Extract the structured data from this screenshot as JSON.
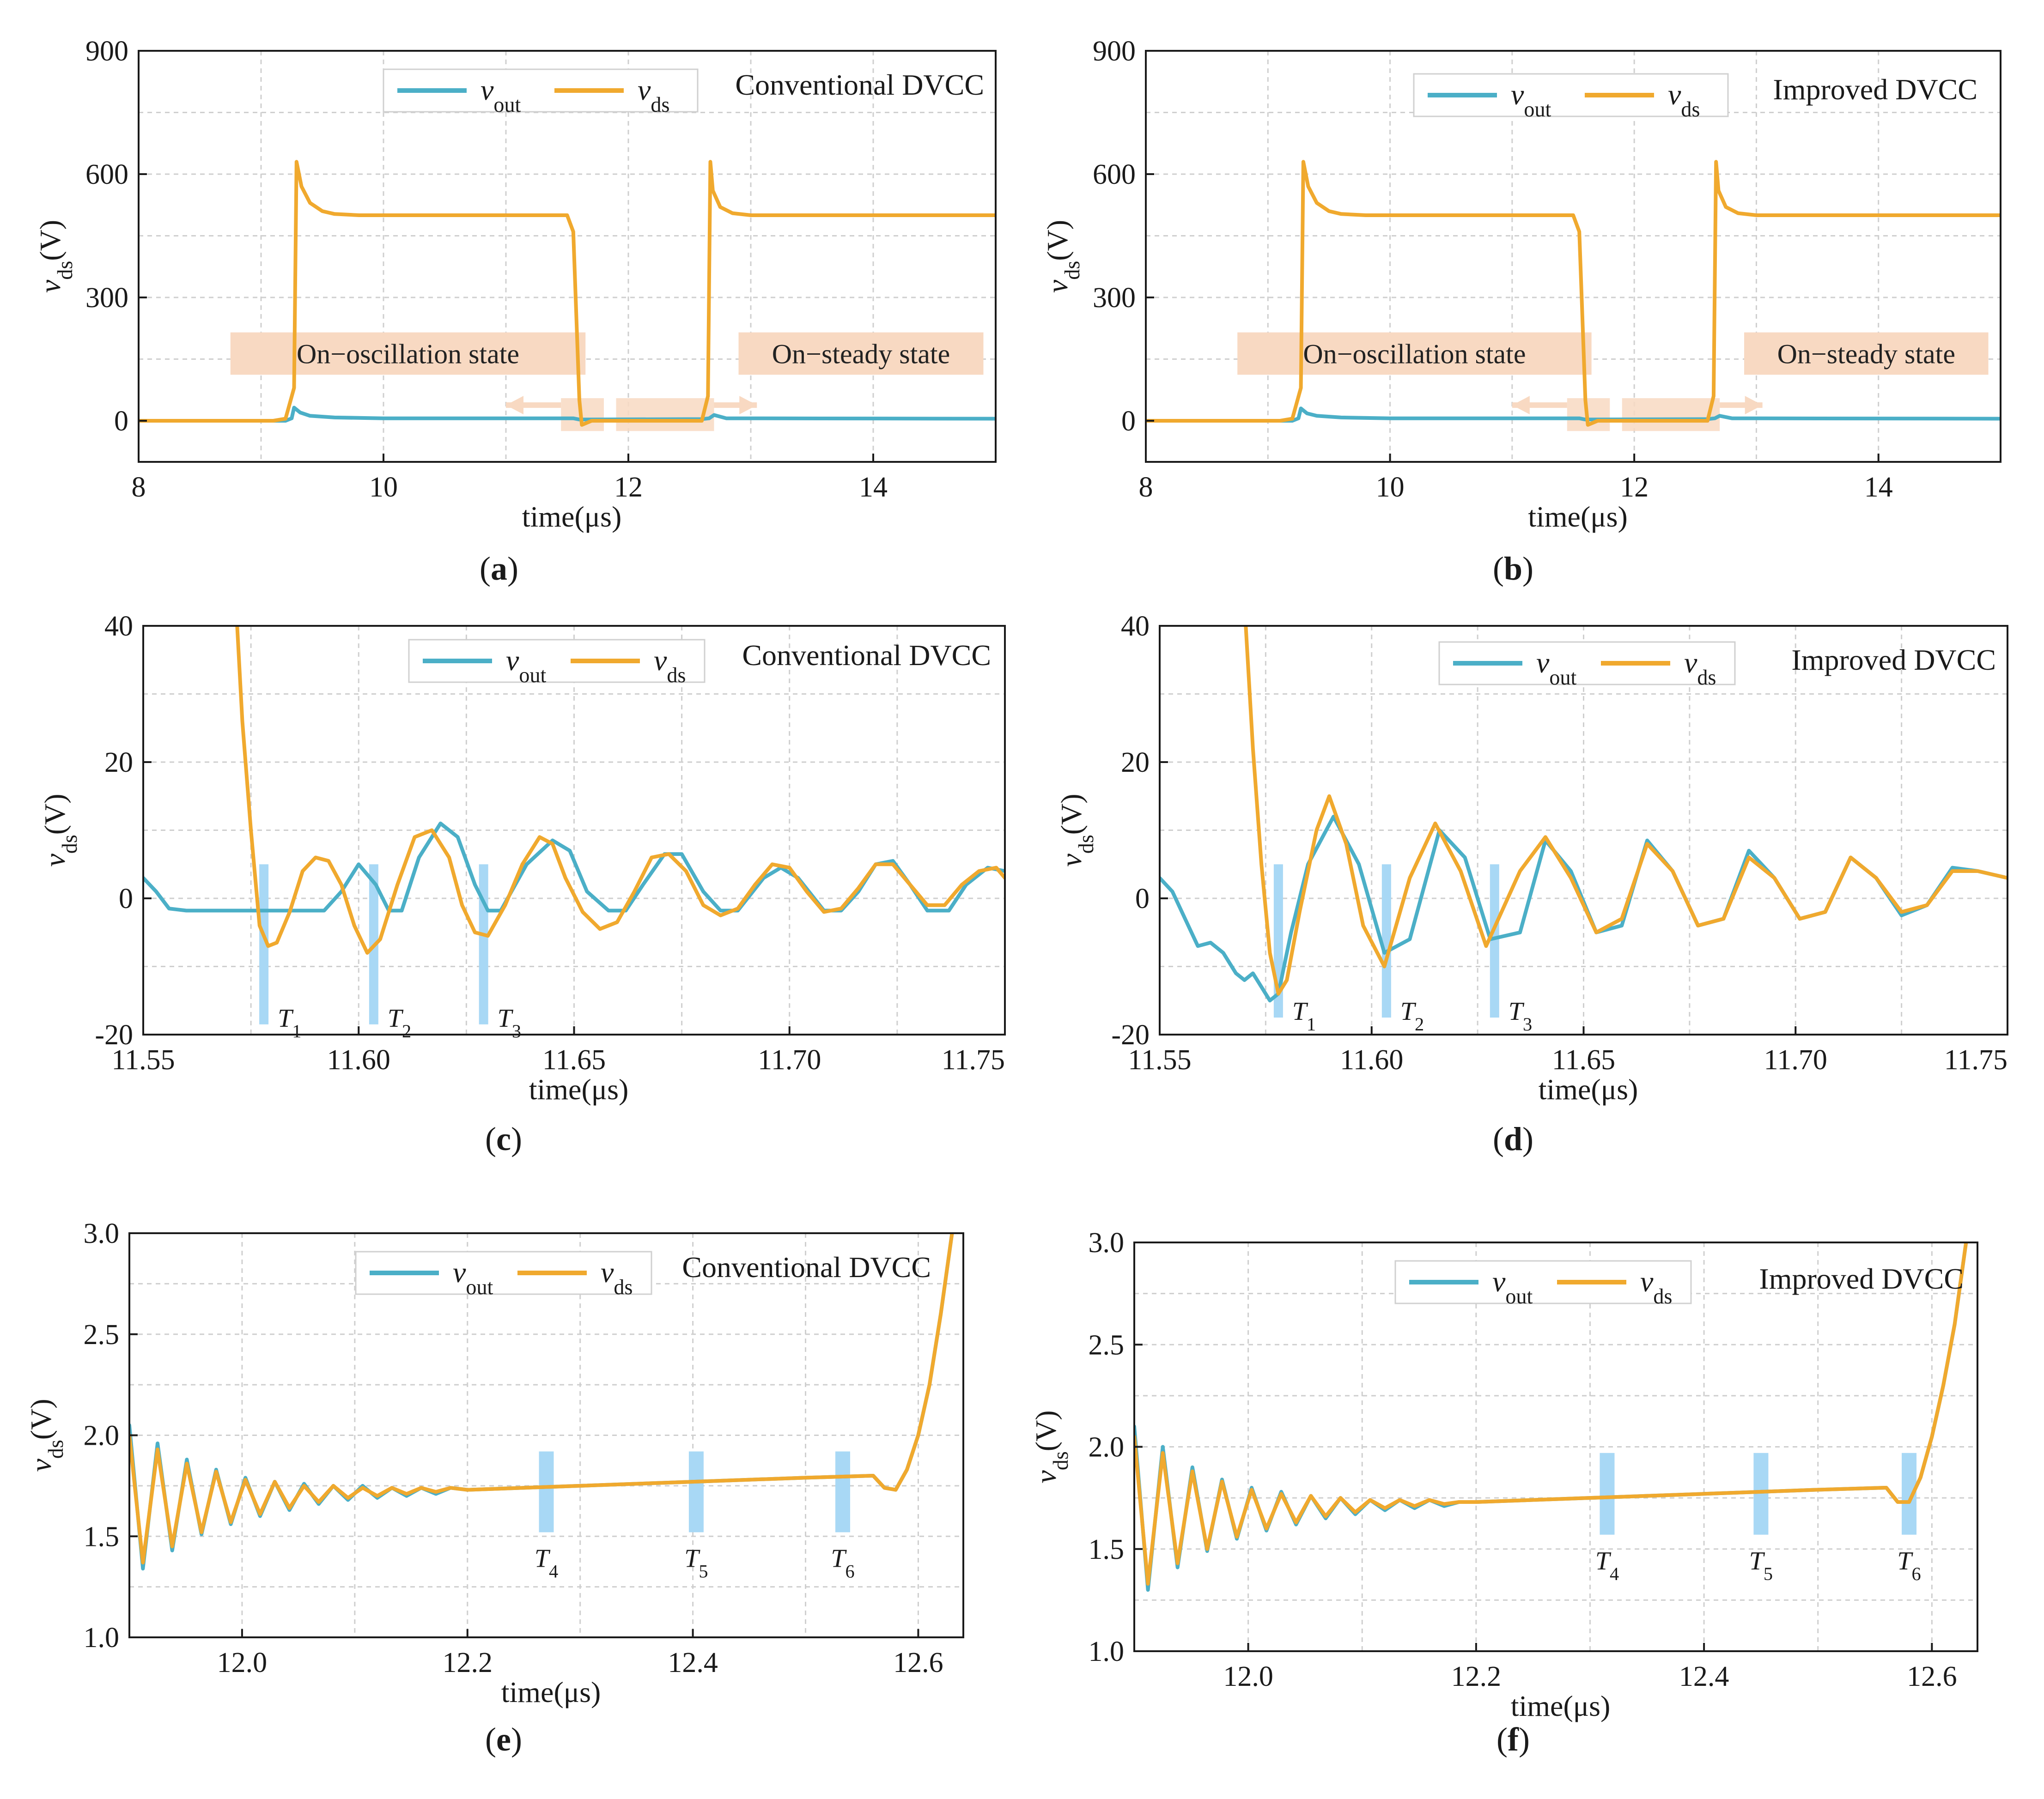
{
  "colors": {
    "vout": "#4BAFC7",
    "vds": "#F0A92E",
    "marker": "#A8D8F5",
    "annotation_box": "#F8D9C2",
    "grid": "#CFCFCF"
  },
  "chart_data": [
    {
      "id": "a",
      "type": "line",
      "caption": "(a)",
      "title": "Conventional DVCC",
      "xlabel": "time(μs)",
      "ylabel": "vds(V)",
      "xlim": [
        8,
        15
      ],
      "ylim": [
        -100,
        900
      ],
      "xticks": [
        "8",
        "10",
        "12",
        "14"
      ],
      "yticks": [
        "0",
        "300",
        "600",
        "900"
      ],
      "legend": [
        "vout",
        "vds"
      ],
      "legend_position": "top-center",
      "grid": true,
      "series": [
        {
          "name": "vout",
          "x": [
            8,
            9.2,
            9.25,
            9.27,
            9.32,
            9.4,
            9.6,
            10,
            11.5,
            11.55,
            11.6,
            12.6,
            12.66,
            12.7,
            12.8,
            15
          ],
          "y": [
            0,
            0,
            6,
            32,
            20,
            12,
            8,
            6,
            6,
            6,
            3,
            4,
            6,
            14,
            6,
            5
          ]
        },
        {
          "name": "vds",
          "x": [
            8,
            9.1,
            9.2,
            9.27,
            9.29,
            9.33,
            9.4,
            9.5,
            9.6,
            9.8,
            10,
            11.5,
            11.55,
            11.6,
            11.62,
            11.7,
            12.6,
            12.65,
            12.67,
            12.69,
            12.75,
            12.85,
            13,
            15
          ],
          "y": [
            0,
            0,
            5,
            80,
            630,
            570,
            530,
            510,
            503,
            500,
            500,
            500,
            460,
            50,
            -10,
            0,
            0,
            60,
            630,
            560,
            520,
            505,
            500,
            500
          ]
        }
      ],
      "annotations": [
        "On−oscillation state",
        "On−steady state"
      ]
    },
    {
      "id": "b",
      "type": "line",
      "caption": "(b)",
      "title": "Improved DVCC",
      "xlabel": "time(μs)",
      "ylabel": "vds(V)",
      "xlim": [
        8,
        15
      ],
      "ylim": [
        -100,
        900
      ],
      "xticks": [
        "8",
        "10",
        "12",
        "14"
      ],
      "yticks": [
        "0",
        "300",
        "600",
        "900"
      ],
      "legend": [
        "vout",
        "vds"
      ],
      "legend_position": "top-center",
      "grid": true,
      "series": [
        {
          "name": "vout",
          "x": [
            8,
            9.2,
            9.25,
            9.27,
            9.32,
            9.4,
            9.6,
            10,
            11.5,
            11.55,
            11.6,
            12.6,
            12.66,
            12.7,
            12.8,
            15
          ],
          "y": [
            0,
            0,
            6,
            30,
            18,
            12,
            8,
            6,
            6,
            6,
            3,
            4,
            6,
            12,
            6,
            5
          ]
        },
        {
          "name": "vds",
          "x": [
            8,
            9.1,
            9.2,
            9.27,
            9.29,
            9.33,
            9.4,
            9.5,
            9.6,
            9.8,
            10,
            11.5,
            11.55,
            11.6,
            11.62,
            11.7,
            12.6,
            12.65,
            12.67,
            12.69,
            12.75,
            12.85,
            13,
            15
          ],
          "y": [
            0,
            0,
            5,
            80,
            630,
            570,
            530,
            510,
            503,
            500,
            500,
            500,
            460,
            50,
            -10,
            0,
            0,
            60,
            630,
            560,
            520,
            505,
            500,
            500
          ]
        }
      ],
      "annotations": [
        "On−oscillation state",
        "On−steady state"
      ]
    },
    {
      "id": "c",
      "type": "line",
      "caption": "(c)",
      "title": "Conventional DVCC",
      "xlabel": "time(μs)",
      "ylabel": "vds(V)",
      "xlim": [
        11.55,
        11.75
      ],
      "ylim": [
        -20,
        40
      ],
      "xticks": [
        "11.55",
        "11.60",
        "11.65",
        "11.70",
        "11.75"
      ],
      "yticks": [
        "-20",
        "0",
        "20",
        "40"
      ],
      "legend": [
        "vout",
        "vds"
      ],
      "legend_position": "top-center",
      "grid": true,
      "markers": [
        "T1",
        "T2",
        "T3"
      ],
      "series": [
        {
          "name": "vout",
          "x": [
            11.55,
            11.553,
            11.556,
            11.56,
            11.57,
            11.58,
            11.592,
            11.596,
            11.6,
            11.604,
            11.607,
            11.61,
            11.614,
            11.619,
            11.623,
            11.627,
            11.63,
            11.633,
            11.639,
            11.645,
            11.649,
            11.653,
            11.658,
            11.662,
            11.666,
            11.671,
            11.675,
            11.68,
            11.684,
            11.688,
            11.694,
            11.698,
            11.702,
            11.708,
            11.712,
            11.716,
            11.72,
            11.724,
            11.728,
            11.732,
            11.737,
            11.741,
            11.746,
            11.75
          ],
          "y": [
            3,
            1,
            -1.5,
            -1.8,
            -1.8,
            -1.8,
            -1.8,
            1,
            5,
            2,
            -1.8,
            -1.8,
            6,
            11,
            9,
            2,
            -1.8,
            -1.8,
            5,
            8.5,
            7,
            1,
            -1.8,
            -1.8,
            2,
            6.5,
            6.5,
            1,
            -1.8,
            -1.8,
            3,
            4.5,
            3,
            -1.8,
            -1.8,
            1,
            5,
            5.5,
            2,
            -1.8,
            -1.8,
            2,
            4.5,
            4
          ]
        },
        {
          "name": "vds",
          "x": [
            11.5718,
            11.573,
            11.575,
            11.577,
            11.579,
            11.581,
            11.584,
            11.587,
            11.59,
            11.593,
            11.596,
            11.599,
            11.602,
            11.605,
            11.609,
            11.613,
            11.617,
            11.621,
            11.624,
            11.627,
            11.63,
            11.634,
            11.638,
            11.642,
            11.645,
            11.648,
            11.652,
            11.656,
            11.66,
            11.664,
            11.668,
            11.672,
            11.676,
            11.68,
            11.684,
            11.688,
            11.692,
            11.696,
            11.7,
            11.704,
            11.708,
            11.712,
            11.716,
            11.72,
            11.724,
            11.728,
            11.732,
            11.736,
            11.74,
            11.744,
            11.748,
            11.75
          ],
          "y": [
            40,
            26,
            10,
            -4,
            -7,
            -6.5,
            -2,
            4,
            6,
            5.5,
            2,
            -4,
            -8,
            -6,
            2,
            9,
            10,
            6,
            -1,
            -5,
            -5.5,
            -1,
            5,
            9,
            8,
            3,
            -2,
            -4.5,
            -3.5,
            1,
            6,
            6.5,
            4,
            -1,
            -2.5,
            -1.5,
            2,
            5,
            4.5,
            1,
            -2,
            -1.5,
            1.5,
            5,
            5,
            2,
            -1,
            -1,
            2,
            4,
            4.5,
            3
          ]
        }
      ]
    },
    {
      "id": "d",
      "type": "line",
      "caption": "(d)",
      "title": "Improved DVCC",
      "xlabel": "time(μs)",
      "ylabel": "vds(V)",
      "xlim": [
        11.55,
        11.75
      ],
      "ylim": [
        -20,
        40
      ],
      "xticks": [
        "11.55",
        "11.60",
        "11.65",
        "11.70",
        "11.75"
      ],
      "yticks": [
        "-20",
        "0",
        "20",
        "40"
      ],
      "legend": [
        "vout",
        "vds"
      ],
      "legend_position": "top-center",
      "grid": true,
      "markers": [
        "T1",
        "T2",
        "T3"
      ],
      "series": [
        {
          "name": "vout",
          "x": [
            11.55,
            11.553,
            11.556,
            11.559,
            11.562,
            11.565,
            11.568,
            11.57,
            11.572,
            11.574,
            11.576,
            11.578,
            11.581,
            11.585,
            11.591,
            11.597,
            11.603,
            11.609,
            11.616,
            11.622,
            11.628,
            11.635,
            11.641,
            11.647,
            11.653,
            11.659,
            11.665,
            11.671,
            11.677,
            11.683,
            11.689,
            11.695,
            11.701,
            11.707,
            11.713,
            11.719,
            11.725,
            11.731,
            11.737,
            11.743,
            11.75
          ],
          "y": [
            3,
            1,
            -3,
            -7,
            -6.5,
            -8,
            -11,
            -12,
            -11,
            -13,
            -15,
            -14,
            -5,
            5,
            12,
            5,
            -8,
            -6,
            10,
            6,
            -6,
            -5,
            8.5,
            4,
            -5,
            -4,
            8.5,
            4,
            -4,
            -3,
            7,
            3,
            -3,
            -2,
            6,
            3,
            -2.5,
            -1,
            4.5,
            4,
            3
          ]
        },
        {
          "name": "vds",
          "x": [
            11.5703,
            11.572,
            11.574,
            11.576,
            11.578,
            11.58,
            11.583,
            11.587,
            11.59,
            11.594,
            11.598,
            11.603,
            11.609,
            11.615,
            11.621,
            11.627,
            11.635,
            11.641,
            11.647,
            11.653,
            11.659,
            11.665,
            11.671,
            11.677,
            11.683,
            11.689,
            11.695,
            11.701,
            11.707,
            11.713,
            11.719,
            11.725,
            11.731,
            11.737,
            11.743,
            11.75
          ],
          "y": [
            40,
            22,
            5,
            -8,
            -14,
            -12,
            -2,
            10,
            15,
            8,
            -4,
            -10,
            3,
            11,
            4,
            -7,
            4,
            9,
            3,
            -5,
            -3,
            8,
            4,
            -4,
            -3,
            6,
            3,
            -3,
            -2,
            6,
            3,
            -2,
            -1,
            4,
            4,
            3
          ]
        }
      ]
    },
    {
      "id": "e",
      "type": "line",
      "caption": "(e)",
      "title": "Conventional DVCC",
      "xlabel": "time(μs)",
      "ylabel": "vds(V)",
      "xlim": [
        11.9,
        12.64
      ],
      "ylim": [
        1.0,
        3.0
      ],
      "xticks": [
        "12.0",
        "12.2",
        "12.4",
        "12.6"
      ],
      "yticks": [
        "1.0",
        "1.5",
        "2.0",
        "2.5",
        "3.0"
      ],
      "legend": [
        "vout",
        "vds"
      ],
      "legend_position": "top-center",
      "grid": true,
      "markers": [
        "T4",
        "T5",
        "T6"
      ],
      "series": [
        {
          "name": "vout",
          "x": [
            11.9,
            11.912,
            11.925,
            11.938,
            11.951,
            11.964,
            11.977,
            11.99,
            12.003,
            12.016,
            12.029,
            12.042,
            12.055,
            12.068,
            12.081,
            12.094,
            12.107,
            12.12,
            12.133,
            12.146,
            12.159,
            12.172,
            12.185,
            12.2,
            12.3,
            12.4,
            12.5,
            12.56,
            12.57,
            12.58,
            12.59,
            12.6,
            12.61,
            12.62,
            12.63
          ],
          "y": [
            2.05,
            1.34,
            1.96,
            1.43,
            1.88,
            1.51,
            1.83,
            1.56,
            1.79,
            1.6,
            1.77,
            1.63,
            1.76,
            1.66,
            1.75,
            1.68,
            1.75,
            1.69,
            1.74,
            1.7,
            1.74,
            1.71,
            1.74,
            1.73,
            1.75,
            1.77,
            1.79,
            1.8,
            1.74,
            1.73,
            1.83,
            2.0,
            2.25,
            2.6,
            3.0
          ]
        },
        {
          "name": "vds",
          "x": [
            11.9,
            11.912,
            11.925,
            11.938,
            11.951,
            11.964,
            11.977,
            11.99,
            12.003,
            12.016,
            12.029,
            12.042,
            12.055,
            12.068,
            12.081,
            12.094,
            12.107,
            12.12,
            12.133,
            12.146,
            12.159,
            12.172,
            12.185,
            12.2,
            12.3,
            12.4,
            12.5,
            12.56,
            12.57,
            12.58,
            12.59,
            12.6,
            12.61,
            12.62,
            12.63
          ],
          "y": [
            2.0,
            1.37,
            1.93,
            1.45,
            1.86,
            1.52,
            1.82,
            1.57,
            1.78,
            1.61,
            1.77,
            1.64,
            1.75,
            1.67,
            1.75,
            1.69,
            1.74,
            1.7,
            1.74,
            1.71,
            1.74,
            1.72,
            1.74,
            1.73,
            1.75,
            1.77,
            1.79,
            1.8,
            1.74,
            1.73,
            1.83,
            2.0,
            2.25,
            2.6,
            3.0
          ]
        }
      ]
    },
    {
      "id": "f",
      "type": "line",
      "caption": "(f)",
      "title": "Improved DVCC",
      "xlabel": "time(μs)",
      "ylabel": "vds(V)",
      "xlim": [
        11.9,
        12.64
      ],
      "ylim": [
        1.0,
        3.0
      ],
      "xticks": [
        "12.0",
        "12.2",
        "12.4",
        "12.6"
      ],
      "yticks": [
        "1.0",
        "1.5",
        "2.0",
        "2.5",
        "3.0"
      ],
      "legend": [
        "vout",
        "vds"
      ],
      "legend_position": "top-center",
      "grid": true,
      "markers": [
        "T4",
        "T5",
        "T6"
      ],
      "series": [
        {
          "name": "vout",
          "x": [
            11.9,
            11.912,
            11.925,
            11.938,
            11.951,
            11.964,
            11.977,
            11.99,
            12.003,
            12.016,
            12.029,
            12.042,
            12.055,
            12.068,
            12.081,
            12.094,
            12.107,
            12.12,
            12.133,
            12.146,
            12.159,
            12.172,
            12.185,
            12.2,
            12.3,
            12.4,
            12.5,
            12.56,
            12.57,
            12.58,
            12.59,
            12.6,
            12.61,
            12.62,
            12.63
          ],
          "y": [
            2.1,
            1.3,
            2.0,
            1.41,
            1.9,
            1.49,
            1.84,
            1.55,
            1.8,
            1.59,
            1.78,
            1.62,
            1.76,
            1.65,
            1.75,
            1.67,
            1.74,
            1.69,
            1.74,
            1.7,
            1.74,
            1.71,
            1.73,
            1.73,
            1.75,
            1.77,
            1.79,
            1.8,
            1.73,
            1.73,
            1.85,
            2.05,
            2.3,
            2.6,
            3.0
          ]
        },
        {
          "name": "vds",
          "x": [
            11.9,
            11.912,
            11.925,
            11.938,
            11.951,
            11.964,
            11.977,
            11.99,
            12.003,
            12.016,
            12.029,
            12.042,
            12.055,
            12.068,
            12.081,
            12.094,
            12.107,
            12.12,
            12.133,
            12.146,
            12.159,
            12.172,
            12.185,
            12.2,
            12.3,
            12.4,
            12.5,
            12.56,
            12.57,
            12.58,
            12.59,
            12.6,
            12.61,
            12.62,
            12.63
          ],
          "y": [
            2.05,
            1.33,
            1.97,
            1.43,
            1.88,
            1.5,
            1.83,
            1.56,
            1.79,
            1.6,
            1.77,
            1.63,
            1.76,
            1.66,
            1.75,
            1.68,
            1.74,
            1.7,
            1.74,
            1.71,
            1.74,
            1.72,
            1.73,
            1.73,
            1.75,
            1.77,
            1.79,
            1.8,
            1.73,
            1.73,
            1.85,
            2.05,
            2.3,
            2.6,
            3.0
          ]
        }
      ]
    }
  ]
}
